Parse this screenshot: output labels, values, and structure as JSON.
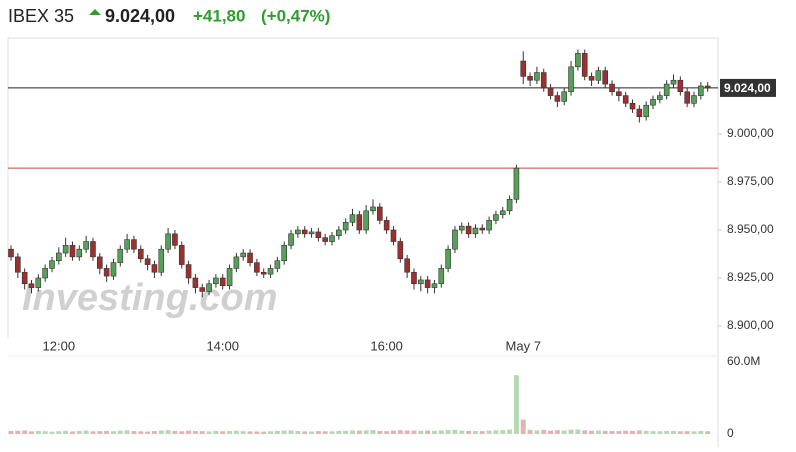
{
  "header": {
    "symbol": "IBEX 35",
    "price": "9.024,00",
    "change": "+41,80",
    "change_pct": "(+0,47%)"
  },
  "chart_data": {
    "type": "candlestick",
    "watermark": "Investing.com",
    "categories": [
      null,
      null,
      null,
      null,
      null,
      null,
      null,
      "12:00",
      null,
      null,
      null,
      null,
      null,
      null,
      null,
      null,
      null,
      null,
      null,
      null,
      null,
      null,
      null,
      null,
      null,
      null,
      null,
      null,
      null,
      null,
      null,
      "14:00",
      null,
      null,
      null,
      null,
      null,
      null,
      null,
      null,
      null,
      null,
      null,
      null,
      null,
      null,
      null,
      null,
      null,
      null,
      null,
      null,
      null,
      null,
      null,
      "16:00",
      null,
      null,
      null,
      null,
      null,
      null,
      null,
      null,
      null,
      null,
      null,
      null,
      null,
      null,
      null,
      null,
      null,
      null,
      null,
      "May 7",
      null,
      null,
      null,
      null,
      null,
      null,
      null,
      null,
      null,
      null,
      null,
      null,
      null,
      null,
      null,
      null,
      null,
      null,
      null,
      null,
      null,
      null,
      null,
      null,
      null,
      null,
      null
    ],
    "open": [
      8940,
      8936,
      8928,
      8922,
      8920,
      8925,
      8930,
      8934,
      8938,
      8942,
      8936,
      8940,
      8944,
      8936,
      8930,
      8926,
      8933,
      8940,
      8945,
      8940,
      8935,
      8932,
      8928,
      8940,
      8948,
      8942,
      8932,
      8925,
      8920,
      8918,
      8922,
      8925,
      8921,
      8930,
      8936,
      8938,
      8933,
      8928,
      8927,
      8930,
      8934,
      8942,
      8948,
      8950,
      8948,
      8949,
      8946,
      8944,
      8947,
      8950,
      8954,
      8958,
      8950,
      8960,
      8962,
      8955,
      8950,
      8944,
      8935,
      8928,
      8922,
      8924,
      8920,
      8922,
      8930,
      8940,
      8950,
      8952,
      8948,
      8951,
      8950,
      8955,
      8958,
      8960,
      8966,
      9038,
      9030,
      9028,
      9032,
      9024,
      9020,
      9017,
      9022,
      9035,
      9042,
      9030,
      9028,
      9033,
      9026,
      9022,
      9020,
      9016,
      9013,
      9009,
      9015,
      9018,
      9020,
      9026,
      9028,
      9022,
      9016,
      9020,
      9025
    ],
    "high": [
      8942,
      8938,
      8930,
      8924,
      8927,
      8932,
      8936,
      8941,
      8946,
      8944,
      8942,
      8947,
      8946,
      8938,
      8932,
      8935,
      8942,
      8948,
      8947,
      8942,
      8937,
      8934,
      8942,
      8951,
      8950,
      8944,
      8934,
      8927,
      8922,
      8924,
      8927,
      8927,
      8932,
      8938,
      8940,
      8940,
      8935,
      8930,
      8932,
      8936,
      8944,
      8950,
      8952,
      8952,
      8951,
      8951,
      8948,
      8949,
      8952,
      8956,
      8961,
      8960,
      8963,
      8966,
      8964,
      8957,
      8952,
      8946,
      8937,
      8930,
      8926,
      8926,
      8924,
      8932,
      8942,
      8952,
      8954,
      8954,
      8953,
      8953,
      8957,
      8960,
      8962,
      8968,
      8984,
      9043,
      9032,
      9035,
      9034,
      9026,
      9022,
      9024,
      9038,
      9044,
      9044,
      9032,
      9035,
      9035,
      9028,
      9024,
      9022,
      9018,
      9015,
      9017,
      9020,
      9022,
      9028,
      9031,
      9030,
      9024,
      9022,
      9027,
      9027
    ],
    "low": [
      8934,
      8925,
      8919,
      8917,
      8918,
      8923,
      8928,
      8932,
      8936,
      8934,
      8934,
      8938,
      8934,
      8927,
      8923,
      8924,
      8931,
      8938,
      8938,
      8933,
      8929,
      8925,
      8926,
      8938,
      8940,
      8930,
      8922,
      8917,
      8915,
      8916,
      8920,
      8919,
      8919,
      8928,
      8934,
      8931,
      8926,
      8925,
      8925,
      8928,
      8932,
      8940,
      8946,
      8946,
      8946,
      8944,
      8942,
      8942,
      8945,
      8948,
      8952,
      8948,
      8948,
      8958,
      8953,
      8948,
      8942,
      8933,
      8925,
      8919,
      8918,
      8917,
      8917,
      8920,
      8928,
      8938,
      8948,
      8946,
      8946,
      8948,
      8948,
      8953,
      8956,
      8958,
      8964,
      9026,
      9025,
      9026,
      9022,
      9018,
      9014,
      9015,
      9020,
      9033,
      9028,
      9025,
      9026,
      9024,
      9020,
      9017,
      9014,
      9011,
      9006,
      9007,
      9013,
      9016,
      9018,
      9024,
      9020,
      9014,
      9014,
      9018,
      9022
    ],
    "close": [
      8936,
      8928,
      8922,
      8920,
      8925,
      8930,
      8934,
      8938,
      8942,
      8936,
      8940,
      8944,
      8936,
      8930,
      8926,
      8933,
      8940,
      8945,
      8940,
      8935,
      8932,
      8928,
      8940,
      8948,
      8942,
      8932,
      8925,
      8920,
      8918,
      8922,
      8925,
      8921,
      8930,
      8936,
      8938,
      8933,
      8928,
      8927,
      8930,
      8934,
      8942,
      8948,
      8950,
      8948,
      8949,
      8946,
      8944,
      8947,
      8950,
      8954,
      8958,
      8950,
      8960,
      8962,
      8955,
      8950,
      8944,
      8935,
      8928,
      8922,
      8924,
      8920,
      8922,
      8930,
      8940,
      8950,
      8952,
      8948,
      8951,
      8950,
      8955,
      8958,
      8960,
      8966,
      8982.2,
      9030,
      9028,
      9032,
      9024,
      9020,
      9017,
      9022,
      9035,
      9042,
      9030,
      9028,
      9033,
      9026,
      9022,
      9020,
      9016,
      9013,
      9009,
      9015,
      9018,
      9020,
      9026,
      9028,
      9022,
      9016,
      9020,
      9025,
      9024
    ],
    "volume": [
      2.5,
      2.8,
      3,
      2.2,
      2.6,
      2.4,
      2,
      2.3,
      2.7,
      2.1,
      2.5,
      2.9,
      2.2,
      2.4,
      2.6,
      2.3,
      2.8,
      3.1,
      2.4,
      2.2,
      2.1,
      2.5,
      2.9,
      3.2,
      2.6,
      2.3,
      2.8,
      2.5,
      2.4,
      2.2,
      2.6,
      2.3,
      2.5,
      2.7,
      2.4,
      2.2,
      2.1,
      2,
      2.3,
      2.6,
      2.9,
      3,
      2.5,
      2.2,
      2.1,
      2.4,
      2.3,
      2.2,
      2.6,
      2.7,
      3,
      2.8,
      3.1,
      3.3,
      2.6,
      2.4,
      2.9,
      3.2,
      3,
      2.8,
      2.6,
      2.9,
      2.7,
      3,
      3.4,
      3.5,
      2.8,
      2.6,
      2.5,
      2.4,
      2.9,
      3.1,
      3.3,
      3.8,
      49,
      12,
      3.5,
      3,
      3.4,
      2.8,
      3.2,
      2.9,
      3.6,
      3.8,
      3.1,
      2.7,
      2.9,
      2.6,
      2.5,
      2.4,
      2.8,
      2.6,
      3,
      2.7,
      2.4,
      2.3,
      2.6,
      2.5,
      2.3,
      2.4,
      2.2,
      2.5,
      2.3
    ],
    "up_color": "#58a05a",
    "down_color": "#9c3030",
    "volume_up_color": "#b5d9b3",
    "volume_down_color": "#e6b3b3",
    "last_price": {
      "value": 9024,
      "label": "9.024,00"
    },
    "prev_close": 8982.2,
    "ylim": [
      8893.75,
      9050
    ],
    "yticks": [
      {
        "value": 8900,
        "label": "8.900,00"
      },
      {
        "value": 8925,
        "label": "8.925,00"
      },
      {
        "value": 8950,
        "label": "8.950,00"
      },
      {
        "value": 8975,
        "label": "8.975,00"
      },
      {
        "value": 9000,
        "label": "9.000,00"
      }
    ],
    "y2lim": [
      0,
      60
    ],
    "y2ticks": [
      0,
      {
        "value": 60,
        "label": "60.0M"
      }
    ]
  }
}
